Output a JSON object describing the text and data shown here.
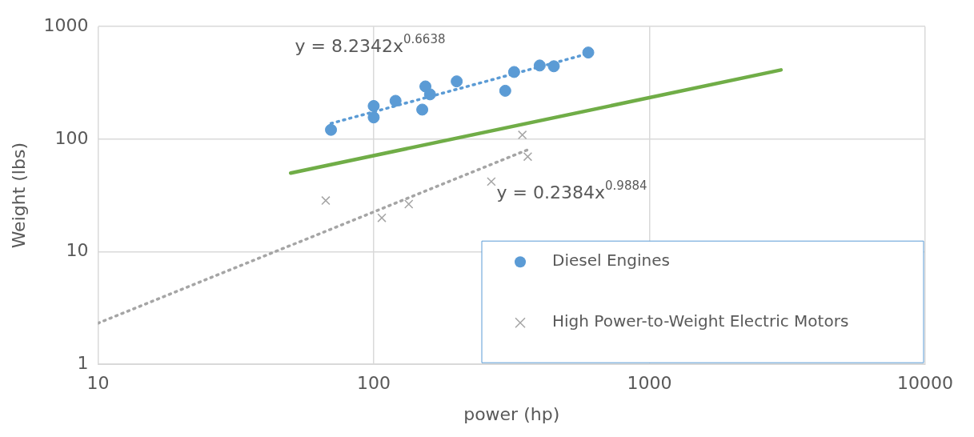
{
  "chart_data": {
    "type": "scatter",
    "xlabel": "power (hp)",
    "ylabel": "Weight (lbs)",
    "log": "xy",
    "xlim": [
      10,
      10000
    ],
    "ylim": [
      1,
      1000
    ],
    "xticks": [
      10,
      100,
      1000,
      10000
    ],
    "yticks": [
      1,
      10,
      100,
      1000
    ],
    "grid": true,
    "legend": "bottom right",
    "series": [
      {
        "name": "Diesel Engines",
        "type": "scatter",
        "marker": "circle",
        "color": "#5b9bd5",
        "x": [
          70,
          100,
          100,
          120,
          150,
          154,
          160,
          200,
          300,
          323,
          400,
          450,
          600
        ],
        "values": [
          121,
          197,
          156,
          219,
          183,
          294,
          250,
          326,
          269,
          395,
          451,
          444,
          588
        ]
      },
      {
        "name": "High Power-to-Weight Electric Motors",
        "type": "scatter",
        "marker": "cross",
        "color": "#a5a5a5",
        "x": [
          67,
          107,
          134,
          267,
          346,
          362
        ],
        "values": [
          28.5,
          20,
          26.5,
          42,
          109,
          70
        ]
      },
      {
        "type": "line",
        "marker": "none",
        "line_style": "dotted",
        "color": "#5b9bd5",
        "x": [
          70,
          600
        ],
        "values": [
          138,
          575
        ]
      },
      {
        "type": "line",
        "marker": "none",
        "line_style": "dotted",
        "color": "#a5a5a5",
        "x": [
          10,
          360
        ],
        "values": [
          2.32,
          80.1
        ]
      },
      {
        "type": "line",
        "marker": "none",
        "line_style": "solid",
        "color": "#70ad47",
        "x": [
          50,
          3000
        ],
        "values": [
          50,
          412
        ]
      }
    ],
    "annotations": [
      "y = 8.2342x$^{0.6638}$",
      "y = 0.2384x$^{0.9884}$"
    ]
  }
}
